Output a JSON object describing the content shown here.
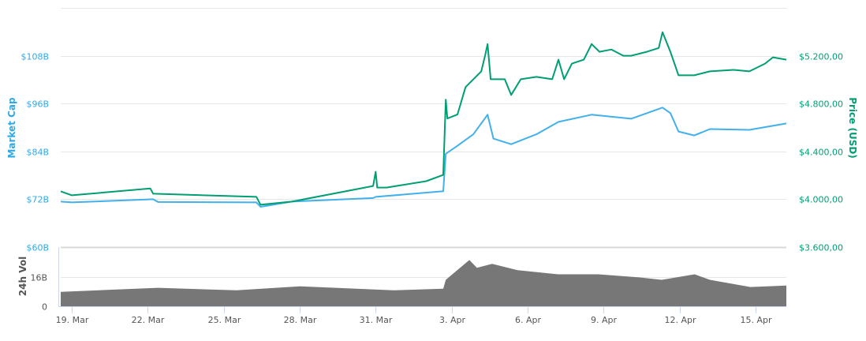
{
  "chart_data": [
    {
      "type": "line",
      "title": "",
      "x_unit": "days since 19. Mar",
      "xlim": [
        -0.44,
        28.22
      ],
      "x_ticks": [
        {
          "day": 0,
          "label": "19. Mar"
        },
        {
          "day": 3,
          "label": "22. Mar"
        },
        {
          "day": 6,
          "label": "25. Mar"
        },
        {
          "day": 9,
          "label": "28. Mar"
        },
        {
          "day": 12,
          "label": "31. Mar"
        },
        {
          "day": 15,
          "label": "3. Apr"
        },
        {
          "day": 18,
          "label": "6. Apr"
        },
        {
          "day": 21,
          "label": "9. Apr"
        },
        {
          "day": 24,
          "label": "12. Apr"
        },
        {
          "day": 27,
          "label": "15. Apr"
        }
      ],
      "y_left": {
        "label": "Market Cap",
        "ylim": [
          60,
          120
        ],
        "ticks": [
          60,
          72,
          84,
          96,
          108
        ],
        "tick_labels": [
          "$60B",
          "$72B",
          "$84B",
          "$96B",
          "$108B"
        ],
        "color": "#2fa9e6"
      },
      "y_right": {
        "label": "Price (USD)",
        "ylim": [
          3600,
          5600
        ],
        "ticks": [
          3600,
          4000,
          4400,
          4800,
          5200
        ],
        "tick_labels": [
          "$3.600,00",
          "$4.000,00",
          "$4.400,00",
          "$4.800,00",
          "$5.200,00"
        ],
        "color": "#009e73"
      },
      "grid": true,
      "series": [
        {
          "name": "Market Cap",
          "axis": "left",
          "color": "#42b0ea",
          "x": [
            -0.44,
            0,
            3.21,
            3.4,
            7.29,
            7.45,
            8.69,
            11.9,
            12.0,
            14.67,
            14.77,
            15.23,
            15.86,
            16.42,
            16.65,
            17.35,
            18.35,
            19.22,
            20.53,
            22.09,
            23.33,
            23.64,
            23.96,
            24.58,
            25.2,
            26.76,
            28.22
          ],
          "values": [
            71.4,
            71.2,
            72.0,
            71.3,
            71.2,
            70.1,
            71.4,
            72.3,
            72.6,
            74.0,
            83.4,
            85.4,
            88.3,
            93.2,
            87.2,
            85.8,
            88.3,
            91.4,
            93.2,
            92.2,
            95.0,
            93.6,
            89.0,
            88.0,
            89.6,
            89.4,
            91.0
          ]
        },
        {
          "name": "Price (USD)",
          "axis": "right",
          "color": "#009e73",
          "x": [
            -0.44,
            0,
            3.1,
            3.21,
            7.29,
            7.45,
            8.69,
            11.9,
            12.0,
            12.06,
            12.43,
            14.0,
            14.67,
            14.77,
            14.83,
            15.23,
            15.55,
            15.86,
            16.17,
            16.32,
            16.42,
            16.54,
            17.1,
            17.35,
            17.73,
            18.35,
            18.97,
            19.22,
            19.44,
            19.75,
            20.22,
            20.53,
            20.84,
            21.31,
            21.78,
            22.09,
            22.71,
            23.18,
            23.33,
            23.64,
            23.96,
            24.58,
            25.2,
            26.14,
            26.76,
            27.38,
            27.69,
            28.22
          ],
          "values": [
            4066,
            4033,
            4090,
            4046,
            4020,
            3954,
            3980,
            4111,
            4230,
            4098,
            4098,
            4151,
            4203,
            4833,
            4675,
            4708,
            4938,
            5003,
            5069,
            5200,
            5298,
            5003,
            5003,
            4872,
            5003,
            5023,
            5003,
            5167,
            5003,
            5134,
            5167,
            5298,
            5233,
            5252,
            5200,
            5200,
            5233,
            5265,
            5397,
            5233,
            5036,
            5036,
            5069,
            5082,
            5069,
            5134,
            5187,
            5167
          ]
        }
      ]
    },
    {
      "type": "area",
      "ylabel": "24h Vol",
      "ylim": [
        0,
        32
      ],
      "ticks": [
        0,
        16
      ],
      "tick_labels": [
        "0",
        "16B"
      ],
      "series": [
        {
          "name": "24h Vol",
          "color": "#777777",
          "x": [
            -0.44,
            3.4,
            6.5,
            9.0,
            12.7,
            14.67,
            14.77,
            15.7,
            16.0,
            16.6,
            17.6,
            19.2,
            20.8,
            22.4,
            23.3,
            24.6,
            25.2,
            26.8,
            28.22
          ],
          "values": [
            7.8,
            10.0,
            8.6,
            10.8,
            8.6,
            9.5,
            14.3,
            25.0,
            20.8,
            22.9,
            19.5,
            17.3,
            17.3,
            15.6,
            14.3,
            17.3,
            14.3,
            10.4,
            11.2
          ]
        }
      ]
    }
  ]
}
